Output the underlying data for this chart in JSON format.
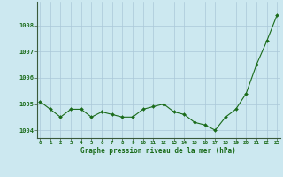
{
  "x": [
    0,
    1,
    2,
    3,
    4,
    5,
    6,
    7,
    8,
    9,
    10,
    11,
    12,
    13,
    14,
    15,
    16,
    17,
    18,
    19,
    20,
    21,
    22,
    23
  ],
  "y": [
    1005.1,
    1004.8,
    1004.5,
    1004.8,
    1004.8,
    1004.5,
    1004.7,
    1004.6,
    1004.5,
    1004.5,
    1004.8,
    1004.9,
    1005.0,
    1004.7,
    1004.6,
    1004.3,
    1004.2,
    1004.0,
    1004.5,
    1004.8,
    1005.4,
    1006.5,
    1007.4,
    1008.4
  ],
  "line_color": "#1a6b1a",
  "marker_color": "#1a6b1a",
  "bg_color": "#cce8f0",
  "grid_color": "#aac8d8",
  "xlabel": "Graphe pression niveau de la mer (hPa)",
  "xlabel_color": "#1a6b1a",
  "tick_color": "#1a6b1a",
  "yticks": [
    1004,
    1005,
    1006,
    1007,
    1008
  ],
  "xticks": [
    0,
    1,
    2,
    3,
    4,
    5,
    6,
    7,
    8,
    9,
    10,
    11,
    12,
    13,
    14,
    15,
    16,
    17,
    18,
    19,
    20,
    21,
    22,
    23
  ],
  "ylim": [
    1003.7,
    1008.9
  ],
  "xlim": [
    -0.3,
    23.3
  ]
}
